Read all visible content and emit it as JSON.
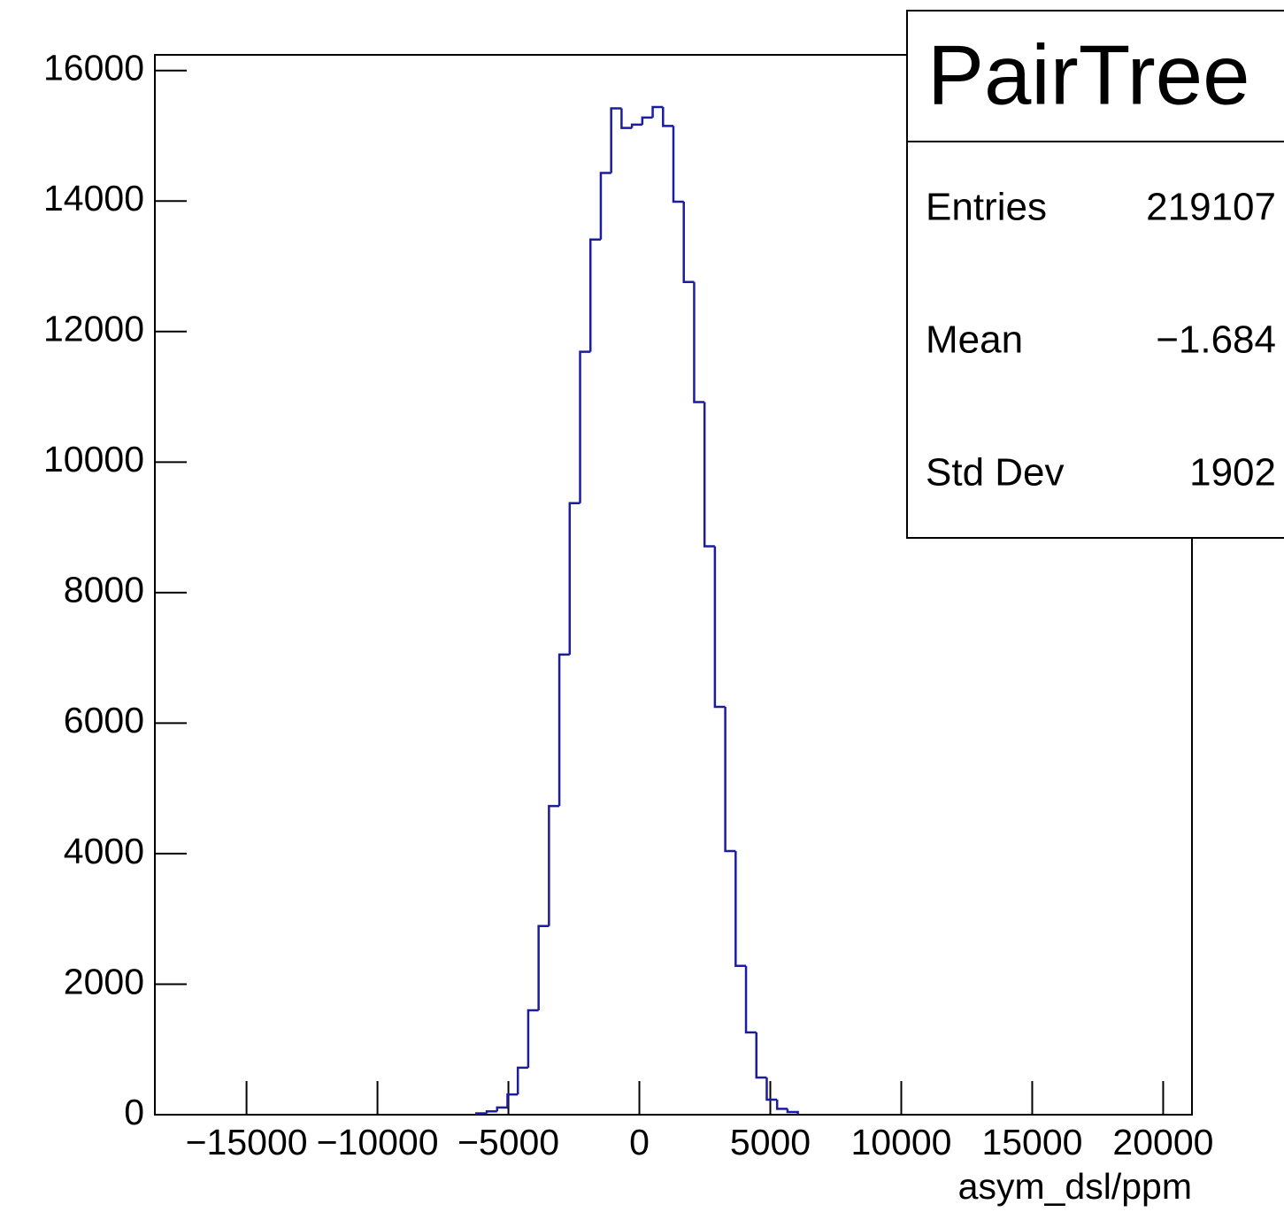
{
  "chart_data": {
    "type": "histogram",
    "x_label": "asym_dsl/ppm",
    "color": "#1c1ca0",
    "bins": [
      -6224,
      -5828,
      -5432,
      -5036,
      -4640,
      -4244,
      -3848,
      -3452,
      -3056,
      -2660,
      -2264,
      -1868,
      -1472,
      -1076,
      -680,
      -284,
      112,
      508,
      904,
      1300,
      1696,
      2092,
      2488,
      2884,
      3280,
      3676,
      4072,
      4468,
      4864,
      5260,
      5656,
      6052
    ],
    "values": [
      20,
      50,
      110,
      310,
      720,
      1600,
      2890,
      4730,
      7050,
      9370,
      11690,
      13410,
      14430,
      15420,
      15120,
      15170,
      15280,
      15440,
      15150,
      13990,
      12760,
      10920,
      8710,
      6250,
      4040,
      2280,
      1260,
      570,
      230,
      90,
      40
    ],
    "xlim": [
      -18500,
      21100
    ],
    "ylim": [
      0,
      16240
    ],
    "xticks": [
      {
        "value": -15000,
        "label": "−15000"
      },
      {
        "value": -10000,
        "label": "−10000"
      },
      {
        "value": -5000,
        "label": "−5000"
      },
      0,
      5000,
      10000,
      15000,
      20000
    ],
    "yticks": [
      0,
      2000,
      4000,
      6000,
      8000,
      10000,
      12000,
      14000,
      16000
    ],
    "stats": {
      "title": "PairTree",
      "rows": [
        [
          "Entries",
          "219107"
        ],
        [
          "Mean",
          "−1.684"
        ],
        [
          "Std Dev",
          "1902"
        ]
      ]
    }
  }
}
